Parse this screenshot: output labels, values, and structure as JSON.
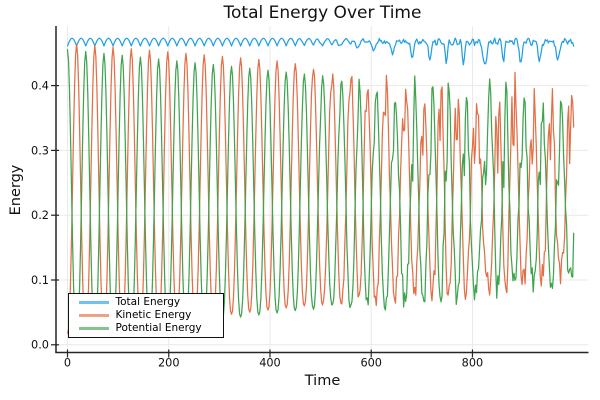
{
  "chart_data": {
    "type": "line",
    "title": "Total Energy Over Time",
    "xlabel": "Time",
    "ylabel": "Energy",
    "xlim": [
      -23,
      1029
    ],
    "ylim": [
      -0.012,
      0.492
    ],
    "grid": true,
    "legend_position": "bottom-left",
    "xticks": [
      {
        "value": 0,
        "label": "0"
      },
      {
        "value": 200,
        "label": "200"
      },
      {
        "value": 400,
        "label": "400"
      },
      {
        "value": 600,
        "label": "600"
      },
      {
        "value": 800,
        "label": "800"
      }
    ],
    "yticks": [
      {
        "value": 0.0,
        "label": "0.0"
      },
      {
        "value": 0.1,
        "label": "0.1"
      },
      {
        "value": 0.2,
        "label": "0.2"
      },
      {
        "value": 0.3,
        "label": "0.3"
      },
      {
        "value": 0.4,
        "label": "0.4"
      }
    ],
    "series": [
      {
        "name": "Total Energy",
        "color": "#249fe4",
        "behavior": "nearly constant ~0.466; small scalloped wobble 0.461-0.473 early; jagged with dips to ~0.438 after t~600"
      },
      {
        "name": "Kinetic Energy",
        "color": "#e36f47",
        "behavior": "oscillates ~0.02-0.465, period ~36; envelope narrows to ~0.10-0.43; chaotic after t~600"
      },
      {
        "name": "Potential Energy",
        "color": "#3ea44e",
        "behavior": "antiphase with kinetic; ~0.01-0.455 narrowing to ~0.10-0.41; chaotic after t~600"
      }
    ],
    "model": {
      "seed": 123459,
      "t_start": 0,
      "t_end": 1000,
      "dt": 2,
      "period": 36,
      "chaos_start": 420,
      "chaos_full": 780,
      "phase_drift": 1.15,
      "total": {
        "base": 0.4612,
        "scallop_amp": 0.0118,
        "chaos_level": 0.0062,
        "dip_depth": 0.032,
        "jitter": 0.007,
        "ripple": 0.0028
      },
      "kinetic": {
        "peak0": 0.465,
        "peak_slope": -6.5e-05,
        "min0": 0.018,
        "min_slope": 9e-05,
        "shape_pow": 1.25,
        "notch": 0.38,
        "jitter": 0.05,
        "env_noise": 0.02
      },
      "potential": {
        "peak0": 0.4555,
        "peak_slope": -8e-05,
        "min0": 0.012,
        "min_slope": 9e-05,
        "shape_pow": 1.25,
        "notch": 0.38,
        "jitter": 0.05,
        "env_noise": 0.02
      }
    }
  },
  "style": {
    "background": "#ffffff",
    "grid_color": "#e9e9e9",
    "spine_color": "#262626",
    "tick_color": "#262626",
    "text_color": "#111111"
  }
}
